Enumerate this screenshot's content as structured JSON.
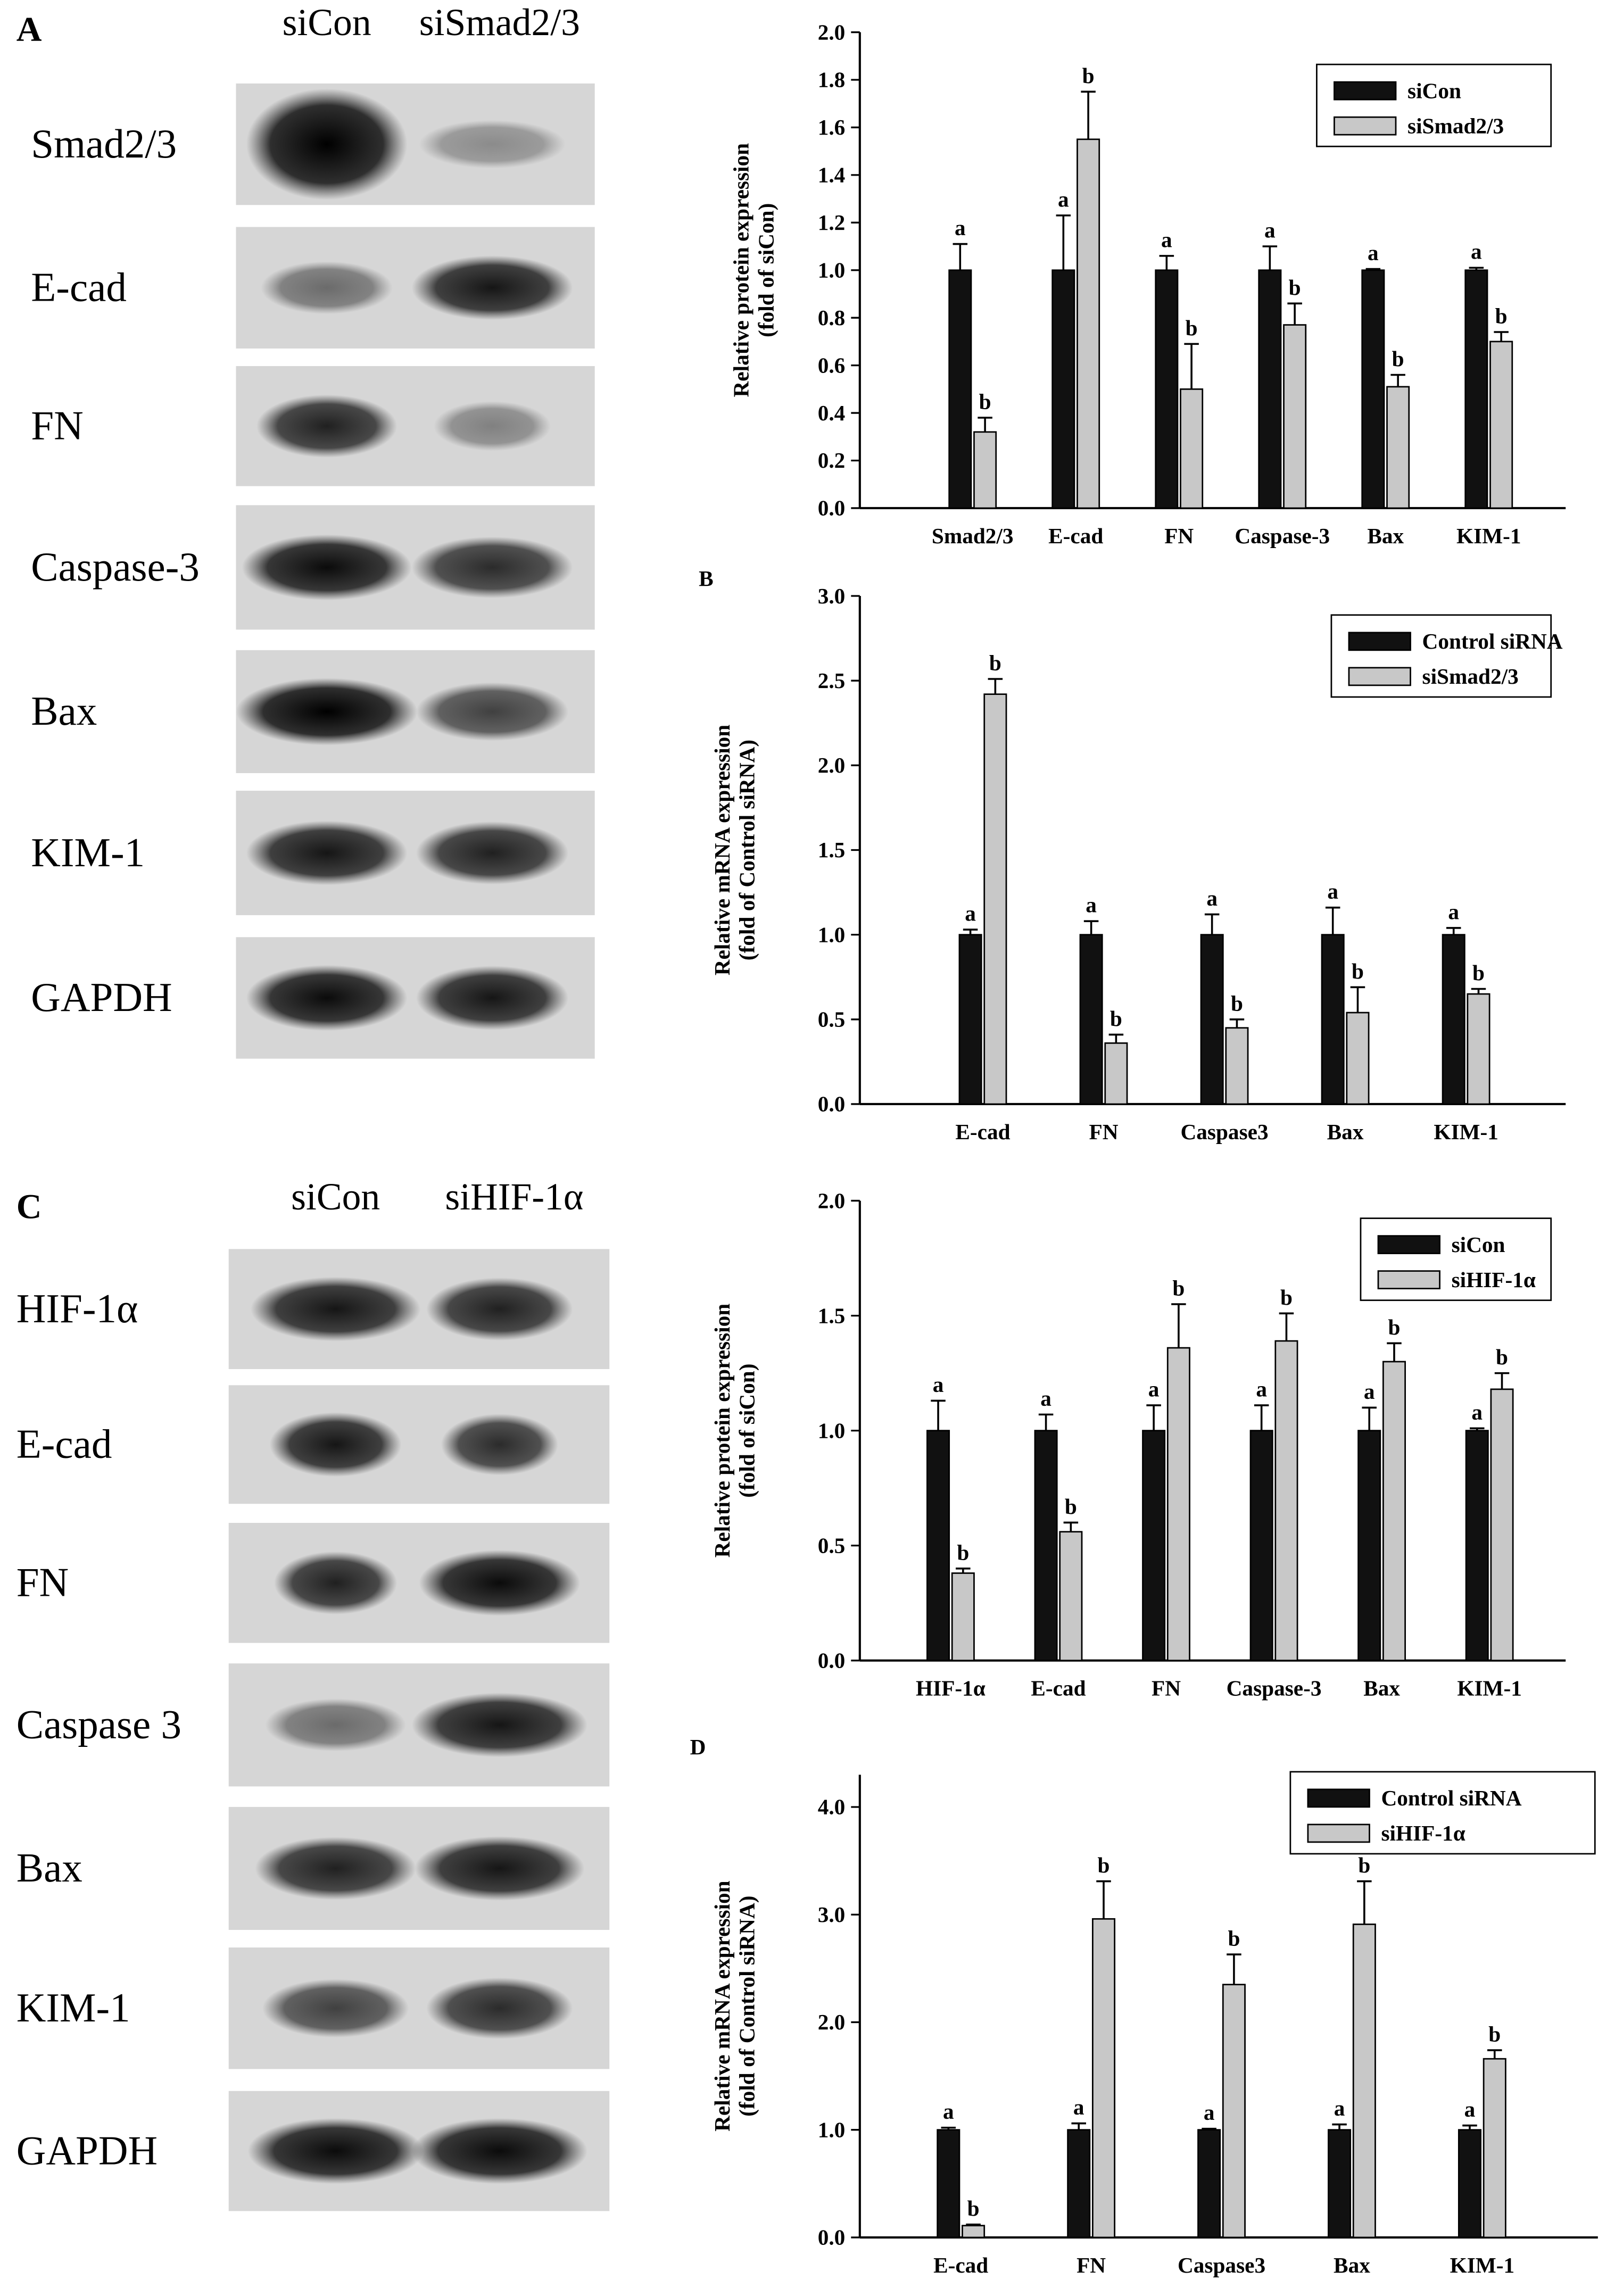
{
  "blots": [
    {
      "panel": "A",
      "lanes": [
        "siCon",
        "siSmad2/3"
      ],
      "rows": [
        "Smad2/3",
        "E-cad",
        "FN",
        "Caspase-3",
        "Bax",
        "KIM-1",
        "GAPDH"
      ]
    },
    {
      "panel": "C",
      "lanes": [
        "siCon",
        "siHIF-1α"
      ],
      "rows": [
        "HIF-1α",
        "E-cad",
        "FN",
        "Caspase 3",
        "Bax",
        "KIM-1",
        "GAPDH"
      ]
    }
  ],
  "chart_data": [
    {
      "type": "bar",
      "ylabel": [
        "Relative protein expression",
        "(fold of siCon)"
      ],
      "categories": [
        "Smad2/3",
        "E-cad",
        "FN",
        "Caspase-3",
        "Bax",
        "KIM-1"
      ],
      "series": [
        {
          "name": "siCon",
          "color": "#111111",
          "values": [
            1,
            1,
            1,
            1,
            1,
            1
          ],
          "errors": [
            0.11,
            0.23,
            0.06,
            0.1,
            0.005,
            0.01
          ],
          "letters": [
            "a",
            "a",
            "a",
            "a",
            "a",
            "a"
          ]
        },
        {
          "name": "siSmad2/3",
          "color": "#c8c8c8",
          "values": [
            0.32,
            1.55,
            0.5,
            0.77,
            0.51,
            0.7
          ],
          "errors": [
            0.06,
            0.2,
            0.19,
            0.09,
            0.05,
            0.04
          ],
          "letters": [
            "b",
            "b",
            "b",
            "b",
            "b",
            "b"
          ]
        }
      ],
      "ylim": [
        0,
        2
      ],
      "yticks": [
        {
          "value": 0,
          "label": "0.0"
        },
        0.2,
        0.4,
        0.6,
        0.8,
        {
          "value": 1,
          "label": "1.0"
        },
        1.2,
        1.4,
        1.6,
        1.8,
        {
          "value": 2,
          "label": "2.0"
        }
      ],
      "legend": "top-right"
    },
    {
      "type": "bar",
      "panel": "B",
      "ylabel": [
        "Relative mRNA expression",
        "(fold of Control siRNA)"
      ],
      "categories": [
        "E-cad",
        "FN",
        "Caspase3",
        "Bax",
        "KIM-1"
      ],
      "series": [
        {
          "name": "Control siRNA",
          "color": "#111111",
          "values": [
            1,
            1,
            1,
            1,
            1
          ],
          "errors": [
            0.03,
            0.08,
            0.12,
            0.16,
            0.04
          ],
          "letters": [
            "a",
            "a",
            "a",
            "a",
            "a"
          ]
        },
        {
          "name": "siSmad2/3",
          "color": "#c8c8c8",
          "values": [
            2.42,
            0.36,
            0.45,
            0.54,
            0.65
          ],
          "errors": [
            0.09,
            0.05,
            0.05,
            0.15,
            0.03
          ],
          "letters": [
            "b",
            "b",
            "b",
            "b",
            "b"
          ]
        }
      ],
      "ylim": [
        0,
        3
      ],
      "yticks": [
        {
          "value": 0,
          "label": "0.0"
        },
        0.5,
        {
          "value": 1,
          "label": "1.0"
        },
        1.5,
        {
          "value": 2,
          "label": "2.0"
        },
        2.5,
        {
          "value": 3,
          "label": "3.0"
        }
      ],
      "legend": "top-right"
    },
    {
      "type": "bar",
      "ylabel": [
        "Relative protein expression",
        "(fold of siCon)"
      ],
      "categories": [
        "HIF-1α",
        "E-cad",
        "FN",
        "Caspase-3",
        "Bax",
        "KIM-1"
      ],
      "series": [
        {
          "name": "siCon",
          "color": "#111111",
          "values": [
            1,
            1,
            1,
            1,
            1,
            1
          ],
          "errors": [
            0.13,
            0.07,
            0.11,
            0.11,
            0.1,
            0.01
          ],
          "letters": [
            "a",
            "a",
            "a",
            "a",
            "a",
            "a"
          ]
        },
        {
          "name": "siHIF-1α",
          "color": "#c8c8c8",
          "values": [
            0.38,
            0.56,
            1.36,
            1.39,
            1.3,
            1.18
          ],
          "errors": [
            0.02,
            0.04,
            0.19,
            0.12,
            0.08,
            0.07
          ],
          "letters": [
            "b",
            "b",
            "b",
            "b",
            "b",
            "b"
          ]
        }
      ],
      "ylim": [
        0,
        2
      ],
      "yticks": [
        {
          "value": 0,
          "label": "0.0"
        },
        0.5,
        {
          "value": 1,
          "label": "1.0"
        },
        1.5,
        {
          "value": 2,
          "label": "2.0"
        }
      ],
      "legend": "top-right"
    },
    {
      "type": "bar",
      "panel": "D",
      "ylabel": [
        "Relative mRNA expression",
        "(fold of Control siRNA)"
      ],
      "categories": [
        "E-cad",
        "FN",
        "Caspase3",
        "Bax",
        "KIM-1"
      ],
      "series": [
        {
          "name": "Control siRNA",
          "color": "#111111",
          "values": [
            1,
            1,
            1,
            1,
            1
          ],
          "errors": [
            0.02,
            0.06,
            0.01,
            0.05,
            0.04
          ],
          "letters": [
            "a",
            "a",
            "a",
            "a",
            "a"
          ]
        },
        {
          "name": "siHIF-1α",
          "color": "#c8c8c8",
          "values": [
            0.11,
            2.96,
            2.35,
            2.91,
            1.66
          ],
          "errors": [
            0.01,
            0.35,
            0.28,
            0.4,
            0.08
          ],
          "letters": [
            "b",
            "b",
            "b",
            "b",
            "b"
          ]
        }
      ],
      "ylim": [
        0,
        4.3
      ],
      "yticks": [
        {
          "value": 0,
          "label": "0.0"
        },
        {
          "value": 1,
          "label": "1.0"
        },
        {
          "value": 2,
          "label": "2.0"
        },
        {
          "value": 3,
          "label": "3.0"
        },
        {
          "value": 4,
          "label": "4.0"
        }
      ],
      "legend": "top-right"
    }
  ]
}
